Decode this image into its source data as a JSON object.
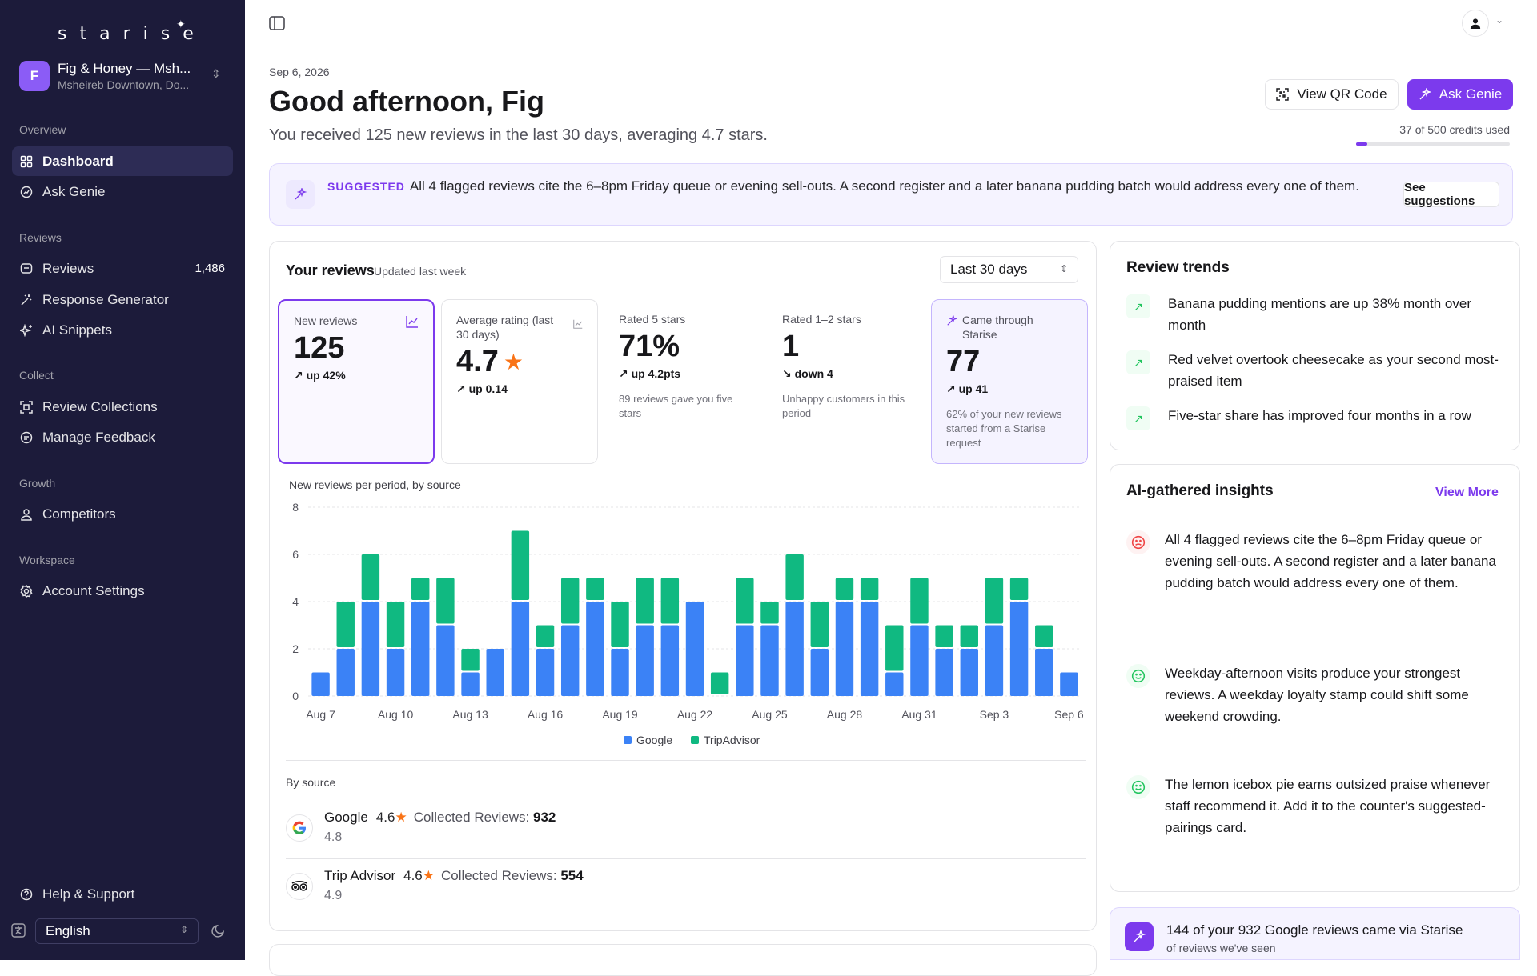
{
  "sidebar": {
    "logo": "starise",
    "org": {
      "initial": "F",
      "name": "Fig & Honey — Msh...",
      "location": "Msheireb Downtown, Do..."
    },
    "sections": [
      {
        "label": "Overview",
        "items": [
          {
            "label": "Dashboard",
            "icon": "grid-icon",
            "active": true
          },
          {
            "label": "Ask Genie",
            "icon": "chat-icon"
          }
        ]
      },
      {
        "label": "Reviews",
        "items": [
          {
            "label": "Reviews",
            "icon": "message-square-icon",
            "count": "1,486"
          },
          {
            "label": "Response Generator",
            "icon": "wand-icon"
          },
          {
            "label": "AI Snippets",
            "icon": "sparkles-icon"
          }
        ]
      },
      {
        "label": "Collect",
        "items": [
          {
            "label": "Review Collections",
            "icon": "scan-icon"
          },
          {
            "label": "Manage Feedback",
            "icon": "feedback-icon"
          }
        ]
      },
      {
        "label": "Growth",
        "items": [
          {
            "label": "Competitors",
            "icon": "users-icon"
          }
        ]
      },
      {
        "label": "Workspace",
        "items": [
          {
            "label": "Account Settings",
            "icon": "gear-icon"
          }
        ]
      }
    ],
    "help": "Help & Support",
    "language": "English"
  },
  "header": {
    "date": "Sep 6, 2026",
    "greeting": "Good afternoon, Fig",
    "subtitle": "You received 125 new reviews in the last 30 days, averaging 4.7 stars.",
    "qr_button": "View QR Code",
    "genie_button": "Ask Genie",
    "credits_text": "37 of 500 credits used",
    "credits_used": 37,
    "credits_total": 500
  },
  "banner": {
    "tag": "SUGGESTED",
    "text": "All 4 flagged reviews cite the 6–8pm Friday queue or evening sell-outs. A second register and a later banana pudding batch would address every one of them.",
    "button": "See suggestions"
  },
  "reviews": {
    "title": "Your reviews",
    "updated": "Updated last week",
    "period": "Last 30 days",
    "stats": [
      {
        "label": "New reviews",
        "value": "125",
        "delta": "up 42%",
        "direction": "up",
        "note": "",
        "style": "sel"
      },
      {
        "label": "Average rating (last 30 days)",
        "value": "4.7",
        "delta": "up 0.14",
        "direction": "up",
        "note": "",
        "style": "box",
        "star": true
      },
      {
        "label": "Rated 5 stars",
        "value": "71%",
        "delta": "up 4.2pts",
        "direction": "up",
        "note": "89 reviews gave you five stars",
        "style": "plain"
      },
      {
        "label": "Rated 1–2 stars",
        "value": "1",
        "delta": "down 4",
        "direction": "down",
        "note": "Unhappy customers in this period",
        "style": "plain"
      },
      {
        "label": "Came through Starise",
        "value": "77",
        "delta": "up 41",
        "direction": "up",
        "note": "62% of your new reviews started from a Starise request",
        "style": "purple"
      }
    ],
    "by_source_label": "By source",
    "sources": [
      {
        "name": "Google",
        "rating": "4.6",
        "collected_label": "Collected Reviews:",
        "collected": "932",
        "sub": "4.8"
      },
      {
        "name": "Trip Advisor",
        "rating": "4.6",
        "collected_label": "Collected Reviews:",
        "collected": "554",
        "sub": "4.9"
      }
    ]
  },
  "chart_data": {
    "type": "bar",
    "stacked": true,
    "title": "New reviews per period, by source",
    "categories": [
      "Aug 7",
      "Aug 8",
      "Aug 9",
      "Aug 10",
      "Aug 11",
      "Aug 12",
      "Aug 13",
      "Aug 14",
      "Aug 15",
      "Aug 16",
      "Aug 17",
      "Aug 18",
      "Aug 19",
      "Aug 20",
      "Aug 21",
      "Aug 22",
      "Aug 23",
      "Aug 24",
      "Aug 25",
      "Aug 26",
      "Aug 27",
      "Aug 28",
      "Aug 29",
      "Aug 30",
      "Aug 31",
      "Sep 1",
      "Sep 2",
      "Sep 3",
      "Sep 4",
      "Sep 5",
      "Sep 6"
    ],
    "tick_labels": [
      "Aug 7",
      "Aug 10",
      "Aug 13",
      "Aug 16",
      "Aug 19",
      "Aug 22",
      "Aug 25",
      "Aug 28",
      "Aug 31",
      "Sep 3",
      "Sep 6"
    ],
    "series": [
      {
        "name": "Google",
        "color": "#3b82f6",
        "values": [
          1,
          2,
          4,
          2,
          4,
          3,
          1,
          2,
          4,
          2,
          3,
          4,
          2,
          3,
          3,
          4,
          0,
          3,
          3,
          4,
          2,
          4,
          4,
          1,
          3,
          2,
          2,
          3,
          4,
          2,
          1
        ]
      },
      {
        "name": "TripAdvisor",
        "color": "#10b981",
        "values": [
          0,
          2,
          2,
          2,
          1,
          2,
          1,
          0,
          3,
          1,
          2,
          1,
          2,
          2,
          2,
          0,
          1,
          2,
          1,
          2,
          2,
          1,
          1,
          2,
          2,
          1,
          1,
          2,
          1,
          1,
          0
        ]
      }
    ],
    "yticks": [
      0,
      2,
      4,
      6,
      8
    ],
    "ylim": [
      0,
      8
    ],
    "grid": true,
    "legend": "bottom"
  },
  "trends": {
    "title": "Review trends",
    "items": [
      "Banana pudding mentions are up 38% month over month",
      "Red velvet overtook cheesecake as your second most-praised item",
      "Five-star share has improved four months in a row"
    ]
  },
  "insights": {
    "title": "AI-gathered insights",
    "view_more": "View More",
    "items": [
      {
        "text": "All 4 flagged reviews cite the 6–8pm Friday queue or evening sell-outs. A second register and a later banana pudding batch would address every one of them.",
        "sentiment": "negative"
      },
      {
        "text": "Weekday-afternoon visits produce your strongest reviews. A weekday loyalty stamp could shift some weekend crowding.",
        "sentiment": "positive"
      },
      {
        "text": "The lemon icebox pie earns outsized praise whenever staff recommend it. Add it to the counter's suggested-pairings card.",
        "sentiment": "positive"
      }
    ]
  },
  "via": {
    "text": "144 of your 932 Google reviews came via Starise",
    "sub": "of reviews we've seen"
  }
}
